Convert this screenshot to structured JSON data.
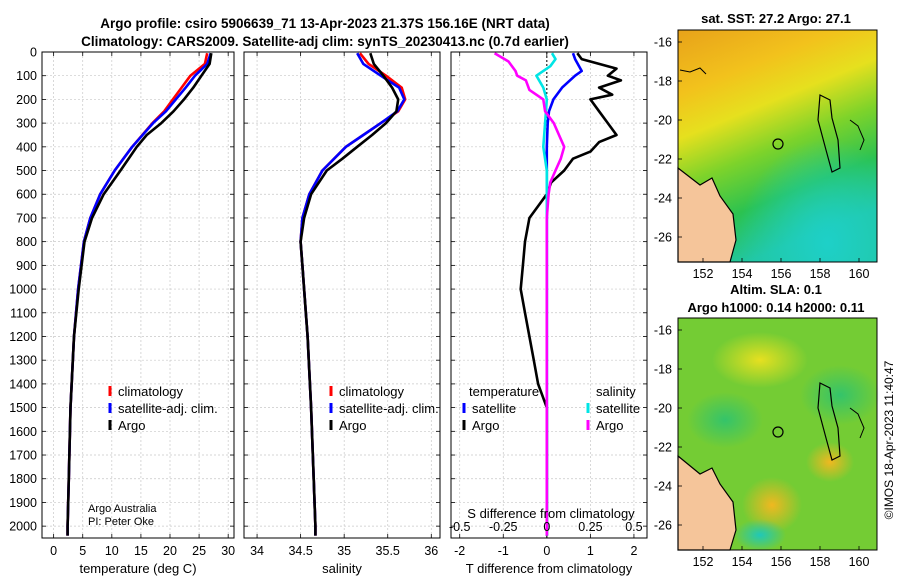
{
  "title": {
    "line1": "Argo profile: csiro 5906639_71 13-Apr-2023 21.37S 156.16E (NRT data)",
    "line2": "Climatology: CARS2009. Satellite-adj clim: synTS_20230413.nc (0.7d earlier)"
  },
  "colors": {
    "climatology": "#ff0000",
    "satellite": "#0000ff",
    "argo": "#000000",
    "sal_satellite": "#00e5e5",
    "sal_argo": "#ff00ff",
    "land": "#f5c59a"
  },
  "chart_data": [
    {
      "type": "line",
      "panel": "temperature",
      "xlabel": "temperature (deg C)",
      "ylabel": "",
      "xlim": [
        -2,
        31
      ],
      "ylim": [
        2050,
        0
      ],
      "xticks": [
        "0",
        "5",
        "10",
        "15",
        "20",
        "25",
        "30"
      ],
      "yticks": [
        "0",
        "100",
        "200",
        "300",
        "400",
        "500",
        "600",
        "700",
        "800",
        "900",
        "1000",
        "1100",
        "1200",
        "1300",
        "1400",
        "1500",
        "1600",
        "1700",
        "1800",
        "1900",
        "2000"
      ],
      "grid": true,
      "legend": [
        "climatology",
        "satellite-adj. clim.",
        "Argo"
      ],
      "legend_position": "lower-right",
      "annotation": [
        "Argo Australia",
        "PI: Peter Oke"
      ],
      "series": [
        {
          "name": "climatology",
          "color": "#ff0000",
          "depth": [
            5,
            50,
            100,
            150,
            200,
            250,
            300,
            400,
            500,
            600,
            700,
            800,
            1000,
            1200,
            1500,
            1800,
            2000,
            2040
          ],
          "values": [
            26.4,
            26.0,
            23.5,
            22.0,
            20.5,
            19.0,
            17.0,
            13.5,
            10.5,
            8.0,
            6.3,
            5.2,
            4.2,
            3.5,
            2.9,
            2.6,
            2.4,
            2.4
          ]
        },
        {
          "name": "satellite-adj. clim.",
          "color": "#0000ff",
          "depth": [
            5,
            50,
            100,
            150,
            200,
            250,
            300,
            400,
            500,
            600,
            700,
            800,
            1000,
            1200,
            1500,
            1800,
            2000,
            2040
          ],
          "values": [
            27.0,
            26.4,
            24.3,
            22.7,
            21.0,
            19.3,
            17.1,
            13.5,
            10.5,
            8.0,
            6.3,
            5.2,
            4.2,
            3.5,
            2.9,
            2.6,
            2.4,
            2.4
          ]
        },
        {
          "name": "Argo",
          "color": "#000000",
          "depth": [
            5,
            50,
            100,
            150,
            200,
            250,
            300,
            350,
            400,
            500,
            600,
            700,
            800,
            1000,
            1200,
            1500,
            1800,
            2000,
            2040
          ],
          "values": [
            27.1,
            26.8,
            25.4,
            24.0,
            22.4,
            20.6,
            18.5,
            16.0,
            14.3,
            11.5,
            8.6,
            6.6,
            5.3,
            4.3,
            3.5,
            2.9,
            2.6,
            2.4,
            2.4
          ]
        }
      ]
    },
    {
      "type": "line",
      "panel": "salinity",
      "xlabel": "salinity",
      "xlim": [
        33.85,
        36.1
      ],
      "ylim": [
        2050,
        0
      ],
      "xticks": [
        "34",
        "34.5",
        "35",
        "35.5",
        "36"
      ],
      "grid": true,
      "legend": [
        "climatology",
        "satellite-adj. clim.",
        "Argo"
      ],
      "legend_position": "lower-right",
      "series": [
        {
          "name": "climatology",
          "color": "#ff0000",
          "depth": [
            5,
            50,
            100,
            150,
            200,
            250,
            300,
            350,
            400,
            500,
            600,
            700,
            800,
            900,
            1000,
            1200,
            1500,
            1800,
            2000,
            2040
          ],
          "values": [
            35.18,
            35.28,
            35.48,
            35.66,
            35.7,
            35.62,
            35.42,
            35.22,
            35.02,
            34.75,
            34.6,
            34.52,
            34.5,
            34.52,
            34.54,
            34.58,
            34.62,
            34.65,
            34.67,
            34.67
          ]
        },
        {
          "name": "satellite-adj. clim.",
          "color": "#0000ff",
          "depth": [
            5,
            50,
            100,
            150,
            200,
            250,
            300,
            350,
            400,
            500,
            600,
            700,
            800,
            900,
            1000,
            1200,
            1500,
            1800,
            2000,
            2040
          ],
          "values": [
            35.15,
            35.22,
            35.42,
            35.63,
            35.69,
            35.61,
            35.42,
            35.22,
            35.02,
            34.75,
            34.6,
            34.52,
            34.5,
            34.52,
            34.54,
            34.58,
            34.62,
            34.65,
            34.67,
            34.67
          ]
        },
        {
          "name": "Argo",
          "color": "#000000",
          "depth": [
            5,
            50,
            100,
            150,
            200,
            250,
            300,
            350,
            400,
            450,
            500,
            600,
            700,
            800,
            900,
            1000,
            1200,
            1500,
            1800,
            2000,
            2040
          ],
          "values": [
            35.3,
            35.34,
            35.45,
            35.55,
            35.62,
            35.6,
            35.48,
            35.32,
            35.15,
            34.98,
            34.8,
            34.62,
            34.54,
            34.5,
            34.52,
            34.54,
            34.58,
            34.62,
            34.65,
            34.67,
            34.67
          ]
        }
      ]
    },
    {
      "type": "line",
      "panel": "difference",
      "xlabel": "T difference from climatology",
      "xlabel_secondary": "S difference from climatology",
      "xlim": [
        -2.2,
        2.3
      ],
      "ylim": [
        2050,
        0
      ],
      "xticks": [
        "-2",
        "-1",
        "0",
        "1",
        "2"
      ],
      "xticks_secondary": [
        "-0.5",
        "-0.25",
        "0",
        "0.25",
        "0.5"
      ],
      "grid": true,
      "legend_temperature_title": "temperature",
      "legend_salinity_title": "salinity",
      "legend_temperature": [
        "satellite",
        "Argo"
      ],
      "legend_salinity": [
        "satellite",
        "Argo"
      ],
      "series": [
        {
          "name": "T satellite",
          "color": "#0000ff",
          "depth": [
            5,
            30,
            80,
            100,
            150,
            200,
            250,
            300,
            400,
            500,
            700,
            900,
            1200,
            1500,
            1800,
            2000,
            2040
          ],
          "values": [
            0.6,
            0.65,
            0.8,
            0.65,
            0.35,
            0.15,
            0.05,
            0.02,
            0.0,
            0.0,
            0.0,
            0.0,
            0.0,
            0.0,
            0.0,
            0.0,
            0.0
          ]
        },
        {
          "name": "T Argo",
          "color": "#000000",
          "depth": [
            5,
            30,
            50,
            70,
            100,
            120,
            150,
            180,
            200,
            250,
            300,
            350,
            380,
            420,
            450,
            500,
            550,
            600,
            650,
            700,
            800,
            900,
            1000,
            1100,
            1200,
            1300,
            1400,
            1500,
            1600,
            1800,
            2000,
            2040
          ],
          "values": [
            0.7,
            0.8,
            1.2,
            1.6,
            1.4,
            1.7,
            1.2,
            1.5,
            1.0,
            1.2,
            1.4,
            1.6,
            1.2,
            1.0,
            0.6,
            0.4,
            0.1,
            0.0,
            -0.2,
            -0.4,
            -0.5,
            -0.55,
            -0.6,
            -0.5,
            -0.4,
            -0.3,
            -0.2,
            0.0,
            0.0,
            0.0,
            0.0,
            0.0
          ]
        },
        {
          "name": "S satellite",
          "color": "#00e5e5",
          "depth": [
            5,
            30,
            60,
            100,
            150,
            200,
            300,
            400,
            500,
            600,
            700,
            1000,
            1500,
            2000,
            2040
          ],
          "values": [
            0.03,
            0.05,
            0.02,
            -0.06,
            -0.02,
            0.0,
            -0.01,
            -0.02,
            0.0,
            0.0,
            0.0,
            0.0,
            0.0,
            0.0,
            0.0
          ]
        },
        {
          "name": "S Argo",
          "color": "#ff00ff",
          "depth": [
            5,
            40,
            80,
            100,
            120,
            160,
            200,
            250,
            300,
            350,
            400,
            450,
            500,
            550,
            600,
            700,
            800,
            1000,
            1500,
            2000,
            2040
          ],
          "values": [
            -0.3,
            -0.22,
            -0.18,
            -0.17,
            -0.12,
            -0.1,
            -0.02,
            -0.01,
            0.04,
            0.07,
            0.1,
            0.08,
            0.05,
            0.02,
            0.01,
            0.0,
            0.0,
            0.0,
            0.0,
            0.0,
            0.0
          ]
        }
      ]
    },
    {
      "type": "heatmap",
      "panel": "map_sst",
      "title": "sat. SST: 27.2 Argo: 27.1",
      "xticks": [
        "152",
        "154",
        "156",
        "158",
        "160"
      ],
      "yticks": [
        "-16",
        "-18",
        "-20",
        "-22",
        "-24",
        "-26"
      ]
    },
    {
      "type": "heatmap",
      "panel": "map_sla",
      "title_line1": "Altim. SLA: 0.1",
      "title_line2": "Argo h1000: 0.14 h2000: 0.11",
      "xticks": [
        "152",
        "154",
        "156",
        "158",
        "160"
      ],
      "yticks": [
        "-16",
        "-18",
        "-20",
        "-22",
        "-24",
        "-26"
      ]
    }
  ],
  "attribution": "©IMOS 18-Apr-2023 11:40:47"
}
